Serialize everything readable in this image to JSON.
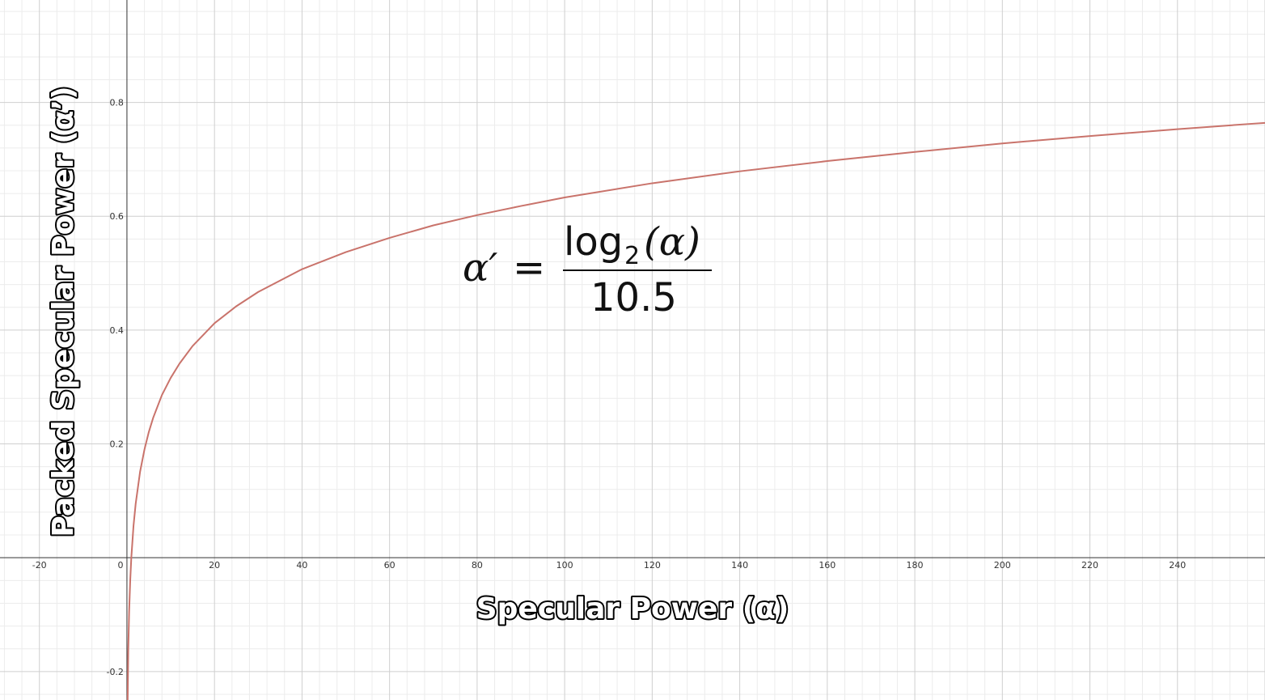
{
  "chart_data": {
    "type": "line",
    "xlabel": "Specular Power (α)",
    "ylabel": "Packed Specular Power (α’)",
    "xlim": [
      -29,
      260
    ],
    "ylim": [
      -0.25,
      0.98
    ],
    "x_ticks": [
      -20,
      0,
      20,
      40,
      60,
      80,
      100,
      120,
      140,
      160,
      180,
      200,
      220,
      240
    ],
    "y_ticks": [
      -0.2,
      0.2,
      0.4,
      0.6,
      0.8
    ],
    "x_tick_labels": [
      "-20",
      "0",
      "20",
      "40",
      "60",
      "80",
      "100",
      "120",
      "140",
      "160",
      "180",
      "200",
      "220",
      "240"
    ],
    "y_tick_labels": [
      "-0.2",
      "0.2",
      "0.4",
      "0.6",
      "0.8"
    ],
    "grid": true,
    "series": [
      {
        "color": "#c9736b",
        "x": [
          0.15,
          0.3,
          0.5,
          0.75,
          1,
          1.5,
          2,
          3,
          4,
          5,
          6,
          8,
          10,
          12,
          15,
          20,
          25,
          30,
          40,
          50,
          60,
          70,
          80,
          90,
          100,
          120,
          140,
          160,
          180,
          200,
          220,
          240,
          256,
          260
        ],
        "values": [
          -0.261,
          -0.165,
          -0.095,
          -0.04,
          0.0,
          0.056,
          0.095,
          0.151,
          0.19,
          0.221,
          0.246,
          0.286,
          0.316,
          0.341,
          0.372,
          0.412,
          0.442,
          0.467,
          0.507,
          0.537,
          0.562,
          0.584,
          0.602,
          0.618,
          0.633,
          0.658,
          0.679,
          0.697,
          0.713,
          0.728,
          0.741,
          0.753,
          0.762,
          0.764
        ]
      }
    ],
    "annotation": {
      "lhs": "α′",
      "equals": "=",
      "numerator_func": "log",
      "numerator_sub": "2",
      "numerator_arg": "(α)",
      "denominator": "10.5"
    }
  }
}
